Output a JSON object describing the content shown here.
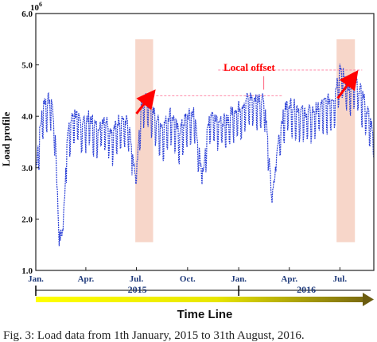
{
  "chart_data": {
    "type": "line",
    "ylabel": "Load profile",
    "y_multiplier": "10",
    "y_multiplier_exp": "6",
    "ylim": [
      1.0,
      6.0
    ],
    "y_ticks": [
      "1.0",
      "2.0",
      "3.0",
      "4.0",
      "5.0",
      "6.0"
    ],
    "x_ticks": [
      "Jan.",
      "Apr.",
      "Jul.",
      "Oct.",
      "Jan.",
      "Apr.",
      "Jul."
    ],
    "x_range": [
      "2015-01-01",
      "2016-08-31"
    ],
    "years": [
      "2015",
      "2016"
    ],
    "timeline_label": "Time Line",
    "annotation_label": "Local offset",
    "highlight_bands": [
      {
        "from": "2015-06-29",
        "to": "2015-07-31",
        "ylim": [
          1.55,
          5.5
        ]
      },
      {
        "from": "2016-06-25",
        "to": "2016-07-28",
        "ylim": [
          1.55,
          5.5
        ]
      }
    ],
    "offset_levels": [
      4.4,
      4.9
    ],
    "series": [
      {
        "color": "#2a3fd6",
        "x": [
          "2015-01-01",
          "2015-01-15",
          "2015-01-29",
          "2015-02-05",
          "2015-02-12",
          "2015-02-19",
          "2015-02-26",
          "2015-03-10",
          "2015-03-24",
          "2015-04-07",
          "2015-04-21",
          "2015-05-05",
          "2015-05-19",
          "2015-06-02",
          "2015-06-16",
          "2015-06-30",
          "2015-07-10",
          "2015-07-20",
          "2015-08-04",
          "2015-08-18",
          "2015-09-01",
          "2015-09-15",
          "2015-09-29",
          "2015-10-13",
          "2015-10-27",
          "2015-11-10",
          "2015-11-24",
          "2015-12-08",
          "2015-12-22",
          "2016-01-05",
          "2016-01-19",
          "2016-02-02",
          "2016-02-16",
          "2016-03-01",
          "2016-03-15",
          "2016-03-29",
          "2016-04-12",
          "2016-04-26",
          "2016-05-10",
          "2016-05-24",
          "2016-06-07",
          "2016-06-21",
          "2016-07-01",
          "2016-07-15",
          "2016-07-29",
          "2016-08-12",
          "2016-08-31"
        ],
        "y": [
          3.0,
          4.2,
          4.25,
          3.6,
          1.6,
          1.8,
          3.5,
          4.0,
          3.8,
          3.9,
          3.7,
          3.9,
          3.6,
          3.9,
          3.8,
          2.7,
          4.15,
          4.35,
          3.9,
          3.7,
          4.0,
          3.6,
          3.9,
          4.0,
          2.8,
          4.0,
          3.9,
          3.8,
          4.05,
          4.1,
          4.3,
          4.25,
          4.3,
          2.35,
          3.7,
          4.2,
          4.1,
          4.0,
          4.0,
          4.1,
          4.2,
          4.3,
          4.9,
          4.5,
          4.6,
          4.3,
          3.6
        ]
      }
    ]
  },
  "caption": "Fig. 3: Load data from 1th January, 2015 to 31th August, 2016."
}
